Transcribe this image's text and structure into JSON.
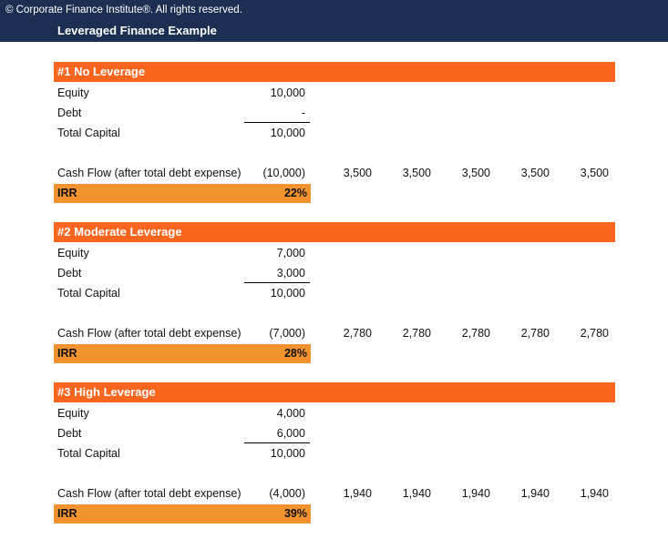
{
  "header": {
    "copyright": "© Corporate Finance Institute®. All rights reserved.",
    "title": "Leveraged Finance Example"
  },
  "labels": {
    "equity": "Equity",
    "debt": "Debt",
    "total_capital": "Total Capital",
    "cash_flow": "Cash Flow (after total debt expense)",
    "irr": "IRR"
  },
  "sections": [
    {
      "title": "#1 No Leverage",
      "equity": "10,000",
      "debt": "-",
      "total_capital": "10,000",
      "cash_flows": [
        "(10,000)",
        "3,500",
        "3,500",
        "3,500",
        "3,500",
        "3,500"
      ],
      "irr": "22%"
    },
    {
      "title": "#2 Moderate Leverage",
      "equity": "7,000",
      "debt": "3,000",
      "total_capital": "10,000",
      "cash_flows": [
        "(7,000)",
        "2,780",
        "2,780",
        "2,780",
        "2,780",
        "2,780"
      ],
      "irr": "28%"
    },
    {
      "title": "#3 High Leverage",
      "equity": "4,000",
      "debt": "6,000",
      "total_capital": "10,000",
      "cash_flows": [
        "(4,000)",
        "1,940",
        "1,940",
        "1,940",
        "1,940",
        "1,940"
      ],
      "irr": "39%"
    }
  ]
}
